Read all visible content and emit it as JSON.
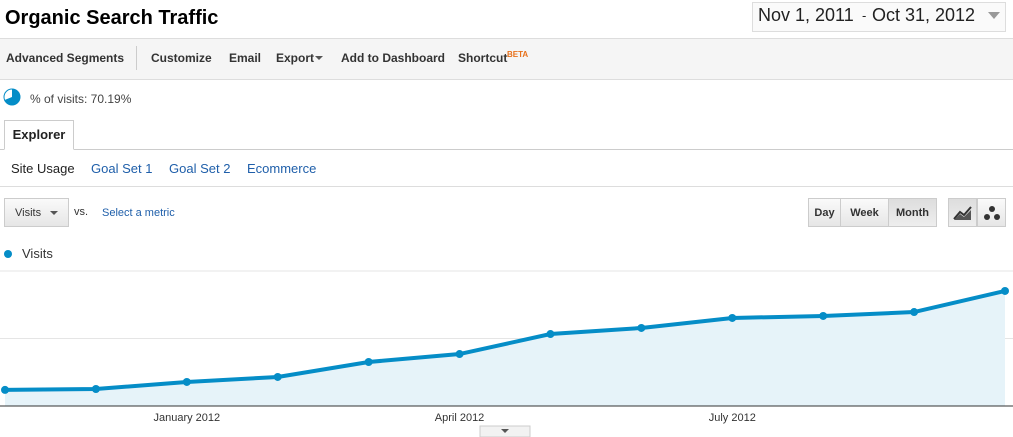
{
  "header": {
    "title": "Organic Search Traffic",
    "date_start": "Nov 1, 2011",
    "date_separator": "-",
    "date_end": "Oct 31, 2012"
  },
  "toolbar": {
    "items": [
      "Advanced Segments",
      "Customize",
      "Email",
      "Export",
      "Add to Dashboard",
      "Shortcut"
    ],
    "beta": "BETA"
  },
  "segment": {
    "label": "% of visits: 70.19%"
  },
  "tabs": {
    "active": "Explorer",
    "subtabs": [
      "Site Usage",
      "Goal Set 1",
      "Goal Set 2",
      "Ecommerce"
    ]
  },
  "controls": {
    "metric": "Visits",
    "vs": "vs.",
    "select": "Select a metric",
    "periods": [
      "Day",
      "Week",
      "Month"
    ]
  },
  "chart_data": {
    "type": "line",
    "x": [
      null,
      null,
      "January 2012",
      null,
      null,
      "April 2012",
      null,
      null,
      "July 2012",
      null,
      null,
      null
    ],
    "series": [
      {
        "name": "Visits",
        "color": "#058dc7",
        "values": [
          11.9,
          12.6,
          17.8,
          21.5,
          32.6,
          38.5,
          53.3,
          57.8,
          65.2,
          66.7,
          69.6,
          85.2
        ]
      }
    ],
    "ylim": [
      0,
      100
    ],
    "grid": true
  }
}
